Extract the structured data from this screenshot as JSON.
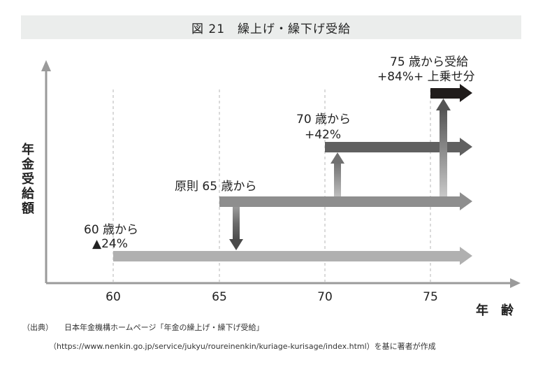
{
  "title": "図 21　繰上げ・繰下げ受給",
  "chart_data": {
    "type": "diagram",
    "x_axis_label": "年　齢",
    "y_axis_label": "年金受給額",
    "x_ticks": [
      "60",
      "65",
      "70",
      "75"
    ],
    "stages": [
      {
        "start_age": 60,
        "label_line1": "60 歳から",
        "label_line2": "▲24%",
        "change_pct": -24
      },
      {
        "start_age": 65,
        "label_line1": "原則 65 歳から",
        "label_line2": "",
        "change_pct": 0
      },
      {
        "start_age": 70,
        "label_line1": "70 歳から",
        "label_line2": "+42%",
        "change_pct": 42
      },
      {
        "start_age": 75,
        "label_line1": "75 歳から受給",
        "label_line2": "+84%+ 上乗せ分",
        "change_pct": 84
      }
    ],
    "colors": {
      "level_60": "#b0b0b0",
      "level_65": "#8e8e8e",
      "level_70": "#606060",
      "level_75": "#201c1b",
      "axis": "#9a9a9a"
    }
  },
  "footer": {
    "source_label": "（出典）",
    "source_text": "日本年金機構ホームページ「年金の繰上げ・繰下げ受給」",
    "url_text": "（https://www.nenkin.go.jp/service/jukyu/roureinenkin/kuriage-kurisage/index.html）を基に著者が作成"
  }
}
